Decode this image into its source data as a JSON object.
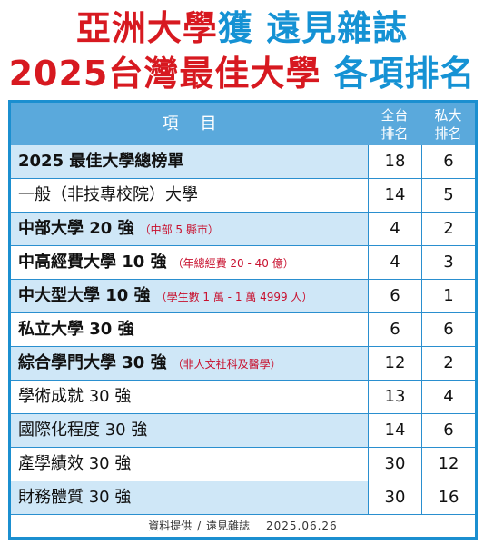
{
  "title": {
    "line1_red": "亞洲大學",
    "line1_blue": "獲 遠見雜誌",
    "line2_red": "2025台灣最佳大學",
    "line2_blue": "各項排名"
  },
  "header": {
    "item_label": "項目",
    "col1_line1": "全台",
    "col1_line2": "排名",
    "col2_line1": "私大",
    "col2_line2": "排名"
  },
  "rows": [
    {
      "name": "2025 最佳大學總榜單",
      "note": "",
      "all_rank": "18",
      "private_rank": "6"
    },
    {
      "name": "一般（非技專校院）大學",
      "note": "",
      "all_rank": "14",
      "private_rank": "5"
    },
    {
      "name": "中部大學 20 強",
      "note": "（中部 5 縣市）",
      "all_rank": "4",
      "private_rank": "2"
    },
    {
      "name": "中高經費大學 10 強",
      "note": "（年總經費 20 - 40 億）",
      "all_rank": "4",
      "private_rank": "3"
    },
    {
      "name": "中大型大學 10 強",
      "note": "（學生數 1 萬 - 1 萬 4999 人）",
      "all_rank": "6",
      "private_rank": "1"
    },
    {
      "name": "私立大學 30 強",
      "note": "",
      "all_rank": "6",
      "private_rank": "6"
    },
    {
      "name": "綜合學門大學 30 強",
      "note": "（非人文社科及醫學）",
      "all_rank": "12",
      "private_rank": "2"
    },
    {
      "name": "學術成就 30 強",
      "note": "",
      "all_rank": "13",
      "private_rank": "4"
    },
    {
      "name": "國際化程度 30 強",
      "note": "",
      "all_rank": "14",
      "private_rank": "6"
    },
    {
      "name": "產學績效 30 強",
      "note": "",
      "all_rank": "30",
      "private_rank": "12"
    },
    {
      "name": "財務體質 30 強",
      "note": "",
      "all_rank": "30",
      "private_rank": "16"
    }
  ],
  "footer": {
    "source": "資料提供 / 遠見雜誌",
    "date": "2025.06.26"
  },
  "colors": {
    "title_red": "#d71920",
    "title_blue": "#1592d4",
    "header_bg": "#5aa9dc",
    "row_alt_bg": "#cfe7f7",
    "border": "#1b8fd0",
    "note_red": "#c8102e"
  }
}
